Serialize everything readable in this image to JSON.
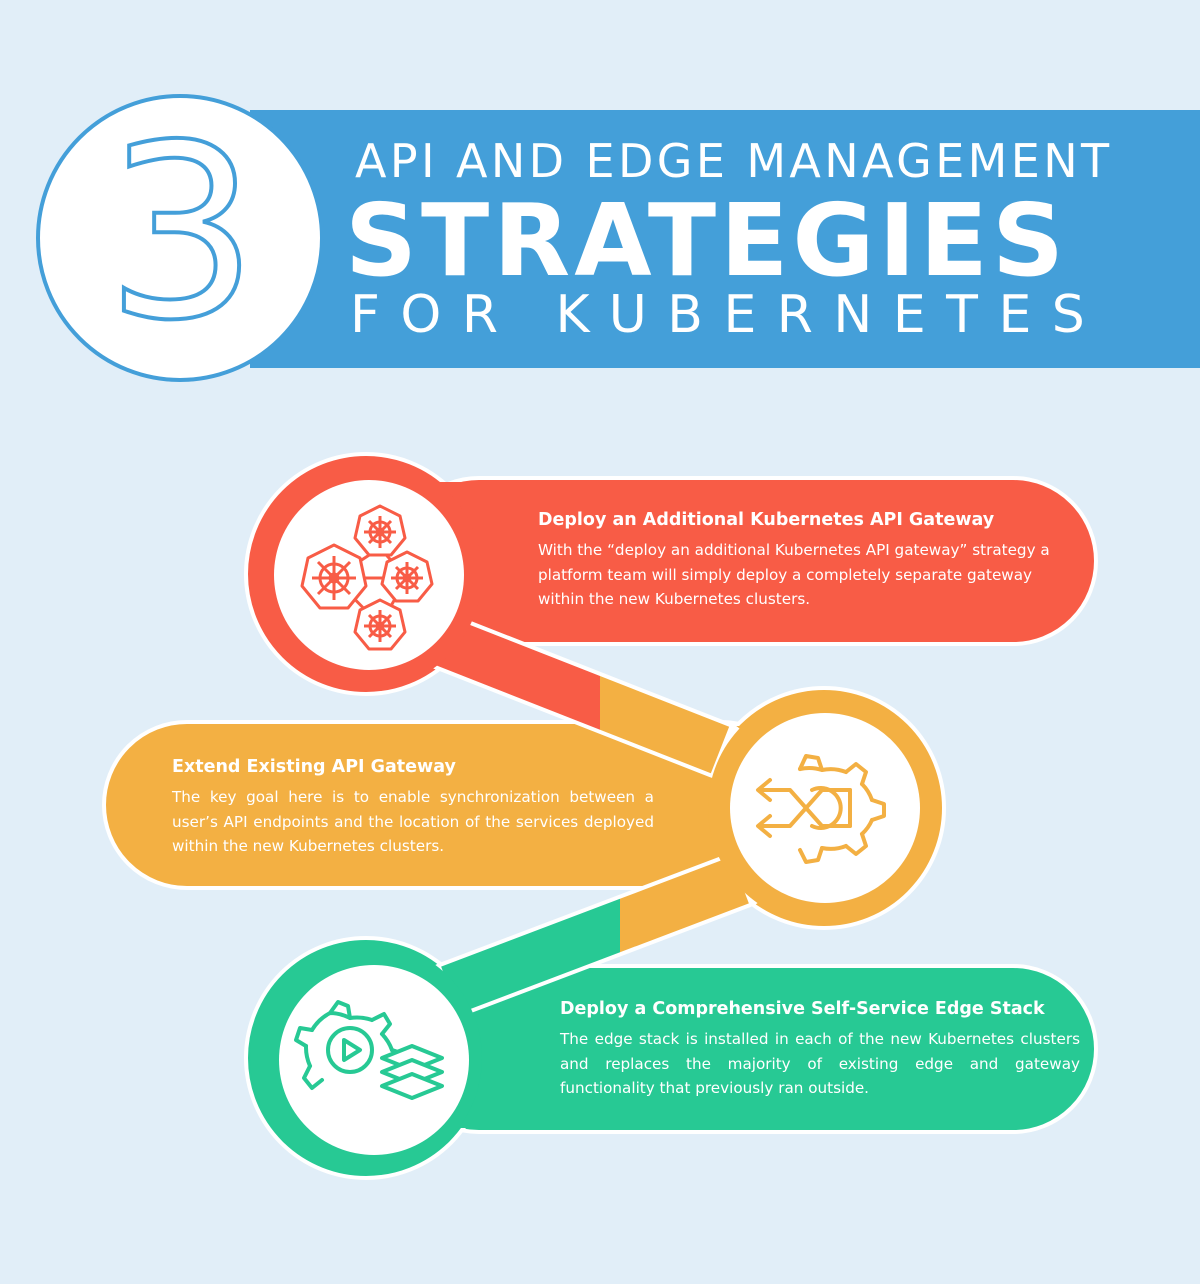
{
  "header": {
    "number": "3",
    "line1": "API AND EDGE MANAGEMENT",
    "line2": "STRATEGIES",
    "line3": "FOR KUBERNETES"
  },
  "colors": {
    "background": "#e1eef8",
    "banner": "#449fd9",
    "step1": "#f85c46",
    "step2": "#f3b043",
    "step3": "#27c994"
  },
  "steps": [
    {
      "title": "Deploy an Additional Kubernetes API Gateway",
      "description": "With the “deploy an additional Kubernetes API gateway” strategy a platform team will simply deploy a completely separate gateway within the new Kubernetes clusters.",
      "icon": "kubernetes-cluster-icon"
    },
    {
      "title": "Extend Existing API Gateway",
      "description": "The key goal here is to enable synchronization between a user’s API endpoints and the location of the services deployed within the new Kubernetes clusters.",
      "icon": "gear-arrows-icon"
    },
    {
      "title": "Deploy a Comprehensive Self-Service Edge Stack",
      "description": "The edge stack is installed in each of the new Kubernetes clusters and replaces the majority of existing edge and gateway functionality that previously ran outside.",
      "icon": "gear-play-layers-icon"
    }
  ]
}
